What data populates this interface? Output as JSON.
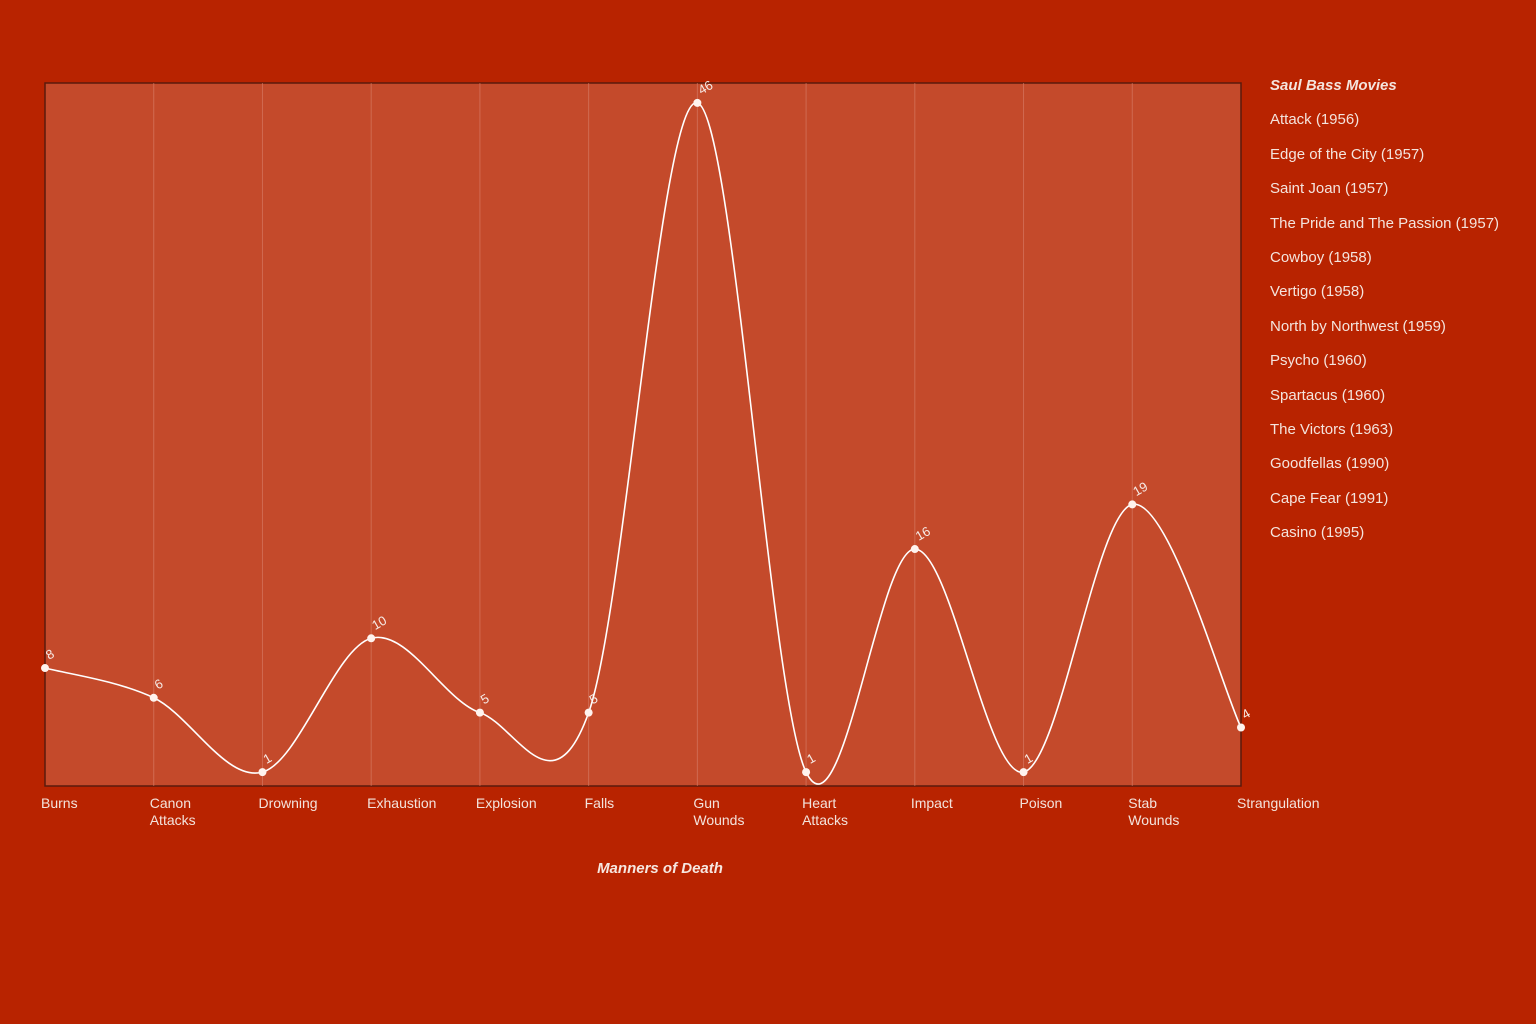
{
  "colors": {
    "background": "#b82300",
    "plot_area": "#c44a2b",
    "plot_border": "#5a1a0c",
    "gridline": "#d9806a",
    "line": "#ffffff",
    "text": "#f3e3dc"
  },
  "legend": {
    "title": "Saul Bass Movies",
    "items": [
      "Attack (1956)",
      "Edge of the City (1957)",
      "Saint Joan (1957)",
      "The Pride and The Passion (1957)",
      "Cowboy (1958)",
      "Vertigo (1958)",
      "North by Northwest (1959)",
      "Psycho (1960)",
      "Spartacus (1960)",
      "The Victors (1963)",
      "Goodfellas (1990)",
      "Cape Fear (1991)",
      "Casino (1995)"
    ]
  },
  "chart_data": {
    "type": "line",
    "title": "",
    "xlabel": "Manners of Death",
    "ylabel": "",
    "categories": [
      [
        "Burns"
      ],
      [
        "Canon",
        "Attacks"
      ],
      [
        "Drowning"
      ],
      [
        "Exhaustion"
      ],
      [
        "Explosion"
      ],
      [
        "Falls"
      ],
      [
        "Gun",
        "Wounds"
      ],
      [
        "Heart",
        "Attacks"
      ],
      [
        "Impact"
      ],
      [
        "Poison"
      ],
      [
        "Stab",
        "Wounds"
      ],
      [
        "Strangulation"
      ]
    ],
    "values": [
      8,
      6,
      1,
      10,
      5,
      5,
      46,
      1,
      16,
      1,
      19,
      4
    ],
    "ylim": [
      0,
      47
    ],
    "grid": "vertical",
    "smooth": true,
    "legend_position": "right"
  }
}
